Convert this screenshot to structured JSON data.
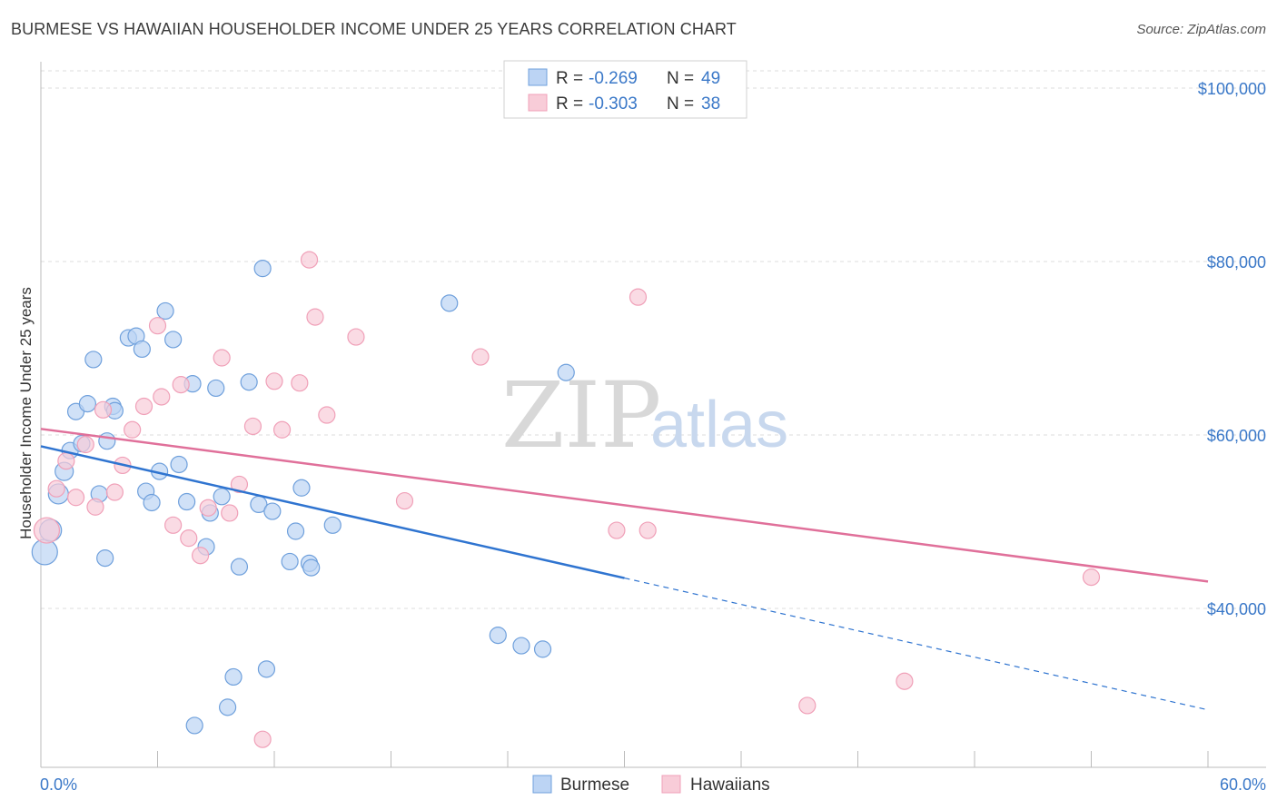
{
  "header": {
    "title": "BURMESE VS HAWAIIAN HOUSEHOLDER INCOME UNDER 25 YEARS CORRELATION CHART",
    "source": "Source: ZipAtlas.com"
  },
  "watermark": {
    "zip": "ZIP",
    "atlas": "atlas"
  },
  "legend_top": {
    "rows": [
      {
        "r_label": "R =",
        "r_value": "-0.269",
        "n_label": "N =",
        "n_value": "49"
      },
      {
        "r_label": "R =",
        "r_value": "-0.303",
        "n_label": "N =",
        "n_value": "38"
      }
    ]
  },
  "legend_bottom": {
    "items": [
      "Burmese",
      "Hawaiians"
    ]
  },
  "chart_data": {
    "type": "scatter",
    "title": "BURMESE VS HAWAIIAN HOUSEHOLDER INCOME UNDER 25 YEARS CORRELATION CHART",
    "xlabel": "",
    "ylabel": "Householder Income Under 25 years",
    "xlim": [
      0,
      60
    ],
    "ylim": [
      22000,
      102000
    ],
    "x_tick_labels": [
      "0.0%",
      "60.0%"
    ],
    "y_ticks": [
      40000,
      60000,
      80000,
      100000
    ],
    "y_tick_labels": [
      "$40,000",
      "$60,000",
      "$80,000",
      "$100,000"
    ],
    "grid": true,
    "legend_position": "top-center",
    "colors": {
      "burmese": "#6fa0dc",
      "hawaiians": "#f0a0b8",
      "burmese_line": "#2f74d0",
      "hawaiians_line": "#e0709a",
      "axis_text": "#3a78c8"
    },
    "series": [
      {
        "name": "Burmese",
        "color": "#6fa0dc",
        "trend": {
          "x0": 0,
          "y0": 58700,
          "x1": 30,
          "y1": 43500,
          "dashed_to_x": 60,
          "dashed_to_y": 28300
        },
        "points": [
          [
            0.2,
            46500,
            14
          ],
          [
            0.5,
            49000,
            12
          ],
          [
            0.9,
            53200,
            11
          ],
          [
            1.2,
            55800,
            10
          ],
          [
            1.5,
            58200,
            9
          ],
          [
            1.8,
            62700,
            9
          ],
          [
            2.1,
            59000,
            9
          ],
          [
            2.4,
            63600,
            9
          ],
          [
            2.7,
            68700,
            9
          ],
          [
            3.0,
            53200,
            9
          ],
          [
            3.3,
            45800,
            9
          ],
          [
            3.4,
            59300,
            9
          ],
          [
            3.7,
            63300,
            9
          ],
          [
            3.8,
            62800,
            9
          ],
          [
            4.5,
            71200,
            9
          ],
          [
            4.9,
            71400,
            9
          ],
          [
            5.2,
            69900,
            9
          ],
          [
            5.4,
            53500,
            9
          ],
          [
            5.7,
            52200,
            9
          ],
          [
            6.1,
            55800,
            9
          ],
          [
            6.4,
            74300,
            9
          ],
          [
            6.8,
            71000,
            9
          ],
          [
            7.1,
            56600,
            9
          ],
          [
            7.5,
            52300,
            9
          ],
          [
            7.8,
            65900,
            9
          ],
          [
            7.9,
            26500,
            9
          ],
          [
            8.5,
            47100,
            9
          ],
          [
            8.7,
            51000,
            9
          ],
          [
            9.0,
            65400,
            9
          ],
          [
            9.3,
            52900,
            9
          ],
          [
            9.6,
            28600,
            9
          ],
          [
            9.9,
            32100,
            9
          ],
          [
            10.2,
            44800,
            9
          ],
          [
            10.7,
            66100,
            9
          ],
          [
            11.2,
            52000,
            9
          ],
          [
            11.4,
            79200,
            9
          ],
          [
            11.6,
            33000,
            9
          ],
          [
            11.9,
            51200,
            9
          ],
          [
            12.8,
            45400,
            9
          ],
          [
            13.1,
            48900,
            9
          ],
          [
            13.4,
            53900,
            9
          ],
          [
            13.8,
            45200,
            9
          ],
          [
            13.9,
            44700,
            9
          ],
          [
            15.0,
            49600,
            9
          ],
          [
            21.0,
            75200,
            9
          ],
          [
            23.5,
            36900,
            9
          ],
          [
            24.7,
            35700,
            9
          ],
          [
            25.8,
            35300,
            9
          ],
          [
            27.0,
            67200,
            9
          ]
        ]
      },
      {
        "name": "Hawaiians",
        "color": "#f0a0b8",
        "trend": {
          "x0": 0,
          "y0": 60700,
          "x1": 60,
          "y1": 43100
        },
        "points": [
          [
            0.3,
            49000,
            14
          ],
          [
            0.8,
            53800,
            9
          ],
          [
            1.3,
            57000,
            9
          ],
          [
            1.8,
            52800,
            9
          ],
          [
            2.3,
            58900,
            9
          ],
          [
            2.8,
            51700,
            9
          ],
          [
            3.2,
            62900,
            9
          ],
          [
            3.8,
            53400,
            9
          ],
          [
            4.2,
            56500,
            9
          ],
          [
            4.7,
            60600,
            9
          ],
          [
            5.3,
            63300,
            9
          ],
          [
            6.0,
            72600,
            9
          ],
          [
            6.2,
            64400,
            9
          ],
          [
            6.8,
            49600,
            9
          ],
          [
            7.2,
            65800,
            9
          ],
          [
            7.6,
            48100,
            9
          ],
          [
            8.2,
            46100,
            9
          ],
          [
            8.6,
            51600,
            9
          ],
          [
            9.3,
            68900,
            9
          ],
          [
            9.7,
            51000,
            9
          ],
          [
            10.2,
            54300,
            9
          ],
          [
            10.9,
            61000,
            9
          ],
          [
            11.4,
            24900,
            9
          ],
          [
            12.0,
            66200,
            9
          ],
          [
            12.4,
            60600,
            9
          ],
          [
            13.3,
            66000,
            9
          ],
          [
            13.8,
            80200,
            9
          ],
          [
            14.1,
            73600,
            9
          ],
          [
            14.7,
            62300,
            9
          ],
          [
            16.2,
            71300,
            9
          ],
          [
            18.7,
            52400,
            9
          ],
          [
            22.6,
            69000,
            9
          ],
          [
            29.6,
            49000,
            9
          ],
          [
            30.7,
            75900,
            9
          ],
          [
            31.2,
            49000,
            9
          ],
          [
            39.4,
            28800,
            9
          ],
          [
            44.4,
            31600,
            9
          ],
          [
            54.0,
            43600,
            9
          ]
        ]
      }
    ]
  }
}
